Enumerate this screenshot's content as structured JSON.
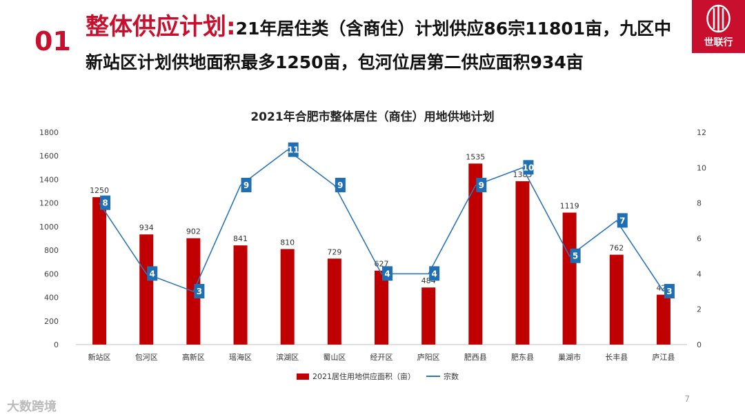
{
  "slide": {
    "number": "01",
    "headline_lead": "整体供应计划:",
    "headline_rest": "21年居住类（含商住）计划供应86宗11801亩，九区中新站区计划供地面积最多1250亩，包河位居第二供应面积934亩",
    "logo_text": "世联行",
    "page_number": "7",
    "watermark": "大数跨境"
  },
  "colors": {
    "bar": "#c00000",
    "line": "#2e75b6",
    "accent": "#c8102e"
  },
  "chart_data": {
    "type": "bar",
    "title": "2021年合肥市整体居住（商住）用地供地计划",
    "categories": [
      "新站区",
      "包河区",
      "高新区",
      "瑶海区",
      "滨湖区",
      "蜀山区",
      "经开区",
      "庐阳区",
      "肥西县",
      "肥东县",
      "巢湖市",
      "长丰县",
      "庐江县"
    ],
    "series": [
      {
        "name": "2021居住用地供应面积（亩）",
        "type": "bar",
        "axis": "left",
        "values": [
          1250,
          934,
          902,
          841,
          810,
          729,
          627,
          484,
          1535,
          1385,
          1119,
          762,
          423
        ]
      },
      {
        "name": "宗数",
        "type": "line",
        "axis": "right",
        "values": [
          8,
          4,
          3,
          9,
          11,
          9,
          4,
          4,
          9,
          10,
          5,
          7,
          3
        ]
      }
    ],
    "bar_value_labels": [
      "1250",
      "934",
      "902",
      "841",
      "810",
      "729",
      "627",
      "484",
      "1535",
      "1385",
      "1119",
      "762",
      "423"
    ],
    "ylim_left": [
      0,
      1800
    ],
    "ylim_right": [
      0,
      12
    ],
    "yticks_left": [
      "0",
      "200",
      "400",
      "600",
      "800",
      "1000",
      "1200",
      "1400",
      "1600",
      "1800"
    ],
    "yticks_right": [
      "0",
      "2",
      "4",
      "6",
      "8",
      "10",
      "12"
    ],
    "grid": false,
    "legend": "bottom"
  }
}
